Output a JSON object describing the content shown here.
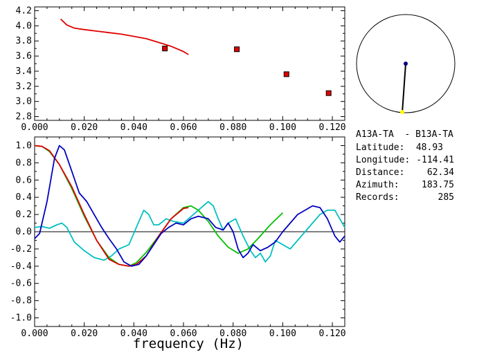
{
  "chart_data": [
    {
      "type": "scatter",
      "panel": "top",
      "title": "",
      "xlabel": "",
      "ylabel": "",
      "xlim": [
        0.0,
        0.125
      ],
      "ylim": [
        2.75,
        4.25
      ],
      "xticks": [
        "0.000",
        "0.020",
        "0.040",
        "0.060",
        "0.080",
        "0.100",
        "0.120"
      ],
      "yticks": [
        "2.8",
        "3.0",
        "3.2",
        "3.4",
        "3.6",
        "3.8",
        "4.0",
        "4.2"
      ],
      "grid": false,
      "series": [
        {
          "kind": "line",
          "color": "#e00000",
          "x": [
            0.0105,
            0.013,
            0.016,
            0.02,
            0.025,
            0.03,
            0.035,
            0.04,
            0.045,
            0.05,
            0.055,
            0.06,
            0.062
          ],
          "y": [
            4.09,
            4.01,
            3.97,
            3.95,
            3.93,
            3.91,
            3.89,
            3.86,
            3.83,
            3.78,
            3.73,
            3.66,
            3.62
          ]
        },
        {
          "kind": "points",
          "color": "#e00000",
          "edge": "#000000",
          "x": [
            0.0525,
            0.0815,
            0.1015,
            0.1185
          ],
          "y": [
            3.7,
            3.69,
            3.36,
            3.11
          ]
        }
      ]
    },
    {
      "type": "line",
      "panel": "bottom",
      "title": "",
      "xlabel": "frequency (Hz)",
      "ylabel": "",
      "xlim": [
        0.0,
        0.125
      ],
      "ylim": [
        -1.1,
        1.1
      ],
      "xticks": [
        "0.000",
        "0.020",
        "0.040",
        "0.060",
        "0.080",
        "0.100",
        "0.120"
      ],
      "yticks": [
        "1.0",
        "0.8",
        "0.6",
        "0.4",
        "0.2",
        "0.0",
        "-0.2",
        "-0.4",
        "-0.6",
        "-0.8",
        "-1.0"
      ],
      "zero_line": true,
      "grid": false,
      "series": [
        {
          "color": "#00c0c0",
          "x": [
            0.0,
            0.003,
            0.006,
            0.009,
            0.011,
            0.013,
            0.016,
            0.02,
            0.024,
            0.028,
            0.031,
            0.034,
            0.038,
            0.041,
            0.044,
            0.046,
            0.048,
            0.05,
            0.053,
            0.056,
            0.06,
            0.064,
            0.068,
            0.07,
            0.072,
            0.074,
            0.076,
            0.078,
            0.081,
            0.084,
            0.087,
            0.089,
            0.091,
            0.093,
            0.095,
            0.097,
            0.1,
            0.103,
            0.106,
            0.109,
            0.112,
            0.115,
            0.118,
            0.121,
            0.123,
            0.125
          ],
          "y": [
            0.05,
            0.06,
            0.04,
            0.08,
            0.1,
            0.05,
            -0.12,
            -0.22,
            -0.3,
            -0.33,
            -0.28,
            -0.2,
            -0.15,
            0.05,
            0.25,
            0.2,
            0.08,
            0.08,
            0.15,
            0.12,
            0.1,
            0.2,
            0.3,
            0.35,
            0.3,
            0.15,
            0.02,
            0.1,
            0.15,
            -0.05,
            -0.22,
            -0.3,
            -0.25,
            -0.35,
            -0.28,
            -0.1,
            -0.15,
            -0.2,
            -0.1,
            0.0,
            0.1,
            0.2,
            0.25,
            0.25,
            0.15,
            0.05
          ]
        },
        {
          "color": "#00c000",
          "x": [
            0.0,
            0.003,
            0.006,
            0.01,
            0.015,
            0.02,
            0.025,
            0.03,
            0.034,
            0.038,
            0.041,
            0.045,
            0.05,
            0.055,
            0.06,
            0.063,
            0.066,
            0.07,
            0.074,
            0.078,
            0.082,
            0.086,
            0.09,
            0.095,
            0.1
          ],
          "y": [
            1.0,
            0.99,
            0.93,
            0.78,
            0.5,
            0.18,
            -0.1,
            -0.3,
            -0.38,
            -0.4,
            -0.36,
            -0.24,
            -0.05,
            0.15,
            0.28,
            0.3,
            0.25,
            0.12,
            -0.05,
            -0.18,
            -0.25,
            -0.2,
            -0.08,
            0.08,
            0.22
          ]
        },
        {
          "color": "#e00000",
          "x": [
            0.0,
            0.003,
            0.006,
            0.01,
            0.015,
            0.02,
            0.025,
            0.03,
            0.034,
            0.038,
            0.041,
            0.045,
            0.05,
            0.055,
            0.06,
            0.062
          ],
          "y": [
            1.0,
            0.99,
            0.94,
            0.78,
            0.52,
            0.2,
            -0.1,
            -0.32,
            -0.38,
            -0.4,
            -0.38,
            -0.28,
            -0.05,
            0.15,
            0.27,
            0.28
          ]
        },
        {
          "color": "#0000c0",
          "x": [
            0.0,
            0.002,
            0.005,
            0.008,
            0.01,
            0.012,
            0.015,
            0.018,
            0.021,
            0.024,
            0.027,
            0.03,
            0.033,
            0.036,
            0.039,
            0.042,
            0.045,
            0.048,
            0.051,
            0.054,
            0.057,
            0.06,
            0.063,
            0.066,
            0.07,
            0.073,
            0.076,
            0.078,
            0.08,
            0.082,
            0.084,
            0.086,
            0.088,
            0.091,
            0.094,
            0.097,
            0.1,
            0.103,
            0.106,
            0.109,
            0.112,
            0.115,
            0.118,
            0.121,
            0.123,
            0.125
          ],
          "y": [
            -0.08,
            -0.02,
            0.35,
            0.85,
            1.0,
            0.95,
            0.7,
            0.45,
            0.35,
            0.2,
            0.05,
            -0.08,
            -0.2,
            -0.35,
            -0.4,
            -0.38,
            -0.28,
            -0.15,
            -0.02,
            0.05,
            0.1,
            0.08,
            0.15,
            0.18,
            0.15,
            0.05,
            0.02,
            0.1,
            0.0,
            -0.2,
            -0.3,
            -0.25,
            -0.15,
            -0.22,
            -0.18,
            -0.12,
            0.0,
            0.1,
            0.2,
            0.25,
            0.3,
            0.28,
            0.15,
            -0.05,
            -0.12,
            -0.05
          ]
        }
      ]
    }
  ],
  "map": {
    "circle_stroke": "#000000",
    "center_dot_color": "#000080",
    "station_dot_color": "#ffff00",
    "azimuth": 183.75
  },
  "info": {
    "pair": "A13A-TA  - B13A-TA",
    "latitude_label": "Latitude:",
    "latitude_value": "48.93",
    "longitude_label": "Longitude:",
    "longitude_value": "-114.41",
    "distance_label": "Distance:",
    "distance_value": "62.34",
    "azimuth_label": "Azimuth:",
    "azimuth_value": "183.75",
    "records_label": "Records:",
    "records_value": "285"
  }
}
